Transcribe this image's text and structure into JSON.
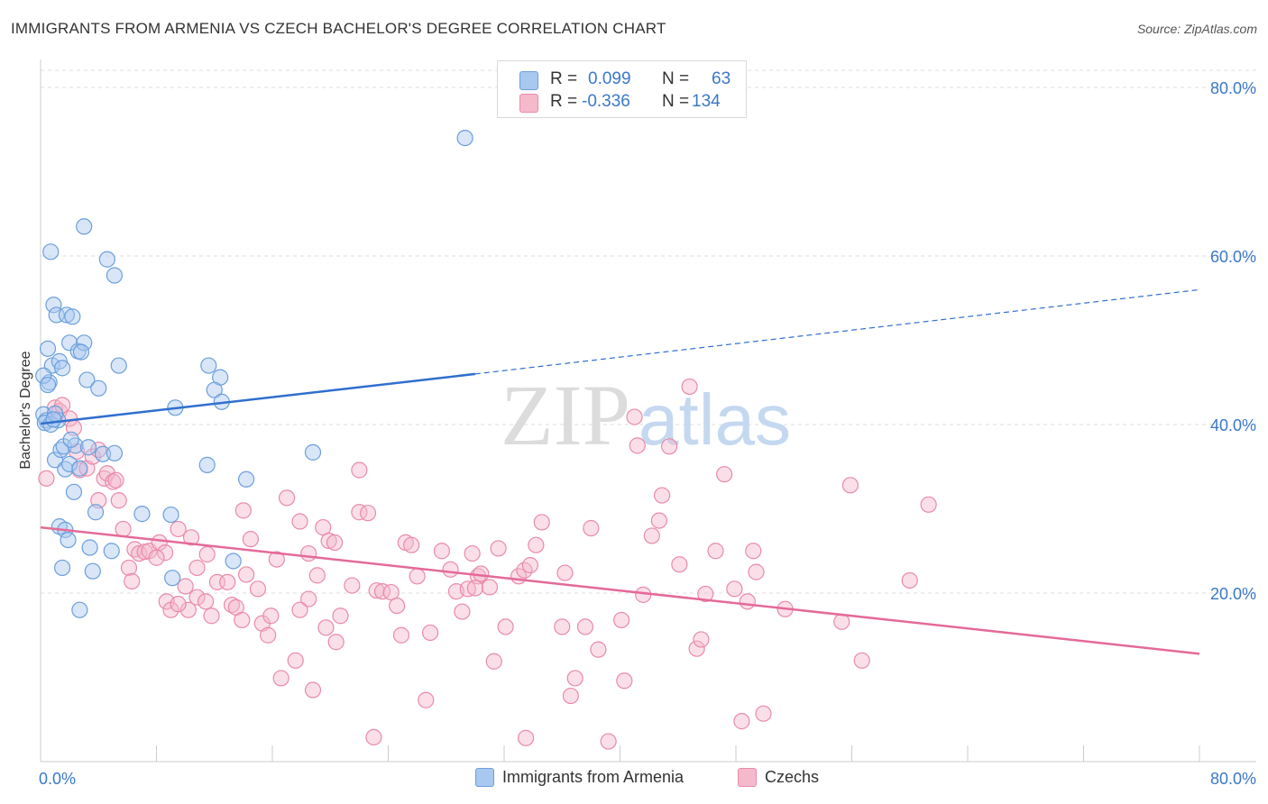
{
  "header": {
    "title": "IMMIGRANTS FROM ARMENIA VS CZECH BACHELOR'S DEGREE CORRELATION CHART",
    "source": "Source: ZipAtlas.com"
  },
  "watermark": {
    "zip": "ZIP",
    "atlas": "atlas"
  },
  "legend": {
    "armenia": {
      "r_label": "R =",
      "r_value": "0.099",
      "n_label": "N =",
      "n_value": "63"
    },
    "czech": {
      "r_label": "R =",
      "r_value": "-0.336",
      "n_label": "N =",
      "n_value": "134"
    }
  },
  "bottom_legend": {
    "armenia": "Immigrants from Armenia",
    "czech": "Czechs"
  },
  "colors": {
    "armenia_fill": "#a9c8ef",
    "armenia_stroke": "#6b9fdc",
    "armenia_line": "#2f6fcf",
    "czech_fill": "#f5b9cc",
    "czech_stroke": "#e98aa9",
    "czech_line": "#e46a98",
    "axis_text": "#3a78c9",
    "grid": "#dddddd"
  },
  "chart_data": {
    "type": "scatter",
    "title": "IMMIGRANTS FROM ARMENIA VS CZECH BACHELOR'S DEGREE CORRELATION CHART",
    "xlabel": "",
    "ylabel": "Bachelor's Degree",
    "xlim": [
      0,
      80
    ],
    "ylim": [
      0,
      80
    ],
    "x_tick_labels": [
      "0.0%",
      "80.0%"
    ],
    "y_ticks": [
      20,
      40,
      60,
      80
    ],
    "y_tick_labels": [
      "20.0%",
      "40.0%",
      "60.0%",
      "80.0%"
    ],
    "series": [
      {
        "name": "Immigrants from Armenia",
        "r": 0.099,
        "n": 63,
        "trend": {
          "x0": 0,
          "y0": 40.1,
          "x1": 30,
          "y1": 46.0,
          "dash_x1": 80,
          "dash_y1": 56.0
        },
        "points": [
          [
            0.2,
            41.2
          ],
          [
            0.4,
            40.5
          ],
          [
            0.6,
            45.0
          ],
          [
            0.8,
            47.0
          ],
          [
            0.5,
            49.0
          ],
          [
            0.7,
            60.5
          ],
          [
            0.9,
            54.2
          ],
          [
            1.1,
            53.0
          ],
          [
            1.3,
            47.5
          ],
          [
            1.5,
            46.7
          ],
          [
            1.8,
            53.0
          ],
          [
            2.2,
            52.8
          ],
          [
            2.0,
            49.7
          ],
          [
            2.6,
            48.7
          ],
          [
            3.0,
            49.7
          ],
          [
            2.8,
            48.6
          ],
          [
            1.2,
            40.5
          ],
          [
            1.0,
            35.8
          ],
          [
            1.4,
            37.0
          ],
          [
            1.6,
            37.4
          ],
          [
            1.7,
            34.7
          ],
          [
            2.0,
            35.3
          ],
          [
            2.4,
            37.5
          ],
          [
            2.1,
            38.2
          ],
          [
            2.3,
            32.0
          ],
          [
            2.7,
            34.8
          ],
          [
            3.3,
            37.3
          ],
          [
            4.3,
            36.5
          ],
          [
            5.1,
            36.6
          ],
          [
            3.8,
            29.6
          ],
          [
            1.3,
            27.9
          ],
          [
            1.7,
            27.5
          ],
          [
            1.9,
            26.3
          ],
          [
            3.4,
            25.4
          ],
          [
            4.9,
            25.0
          ],
          [
            1.5,
            23.0
          ],
          [
            3.6,
            22.6
          ],
          [
            2.7,
            18.0
          ],
          [
            3.0,
            63.5
          ],
          [
            4.6,
            59.6
          ],
          [
            5.1,
            57.7
          ],
          [
            5.4,
            47.0
          ],
          [
            3.2,
            45.3
          ],
          [
            4.0,
            44.3
          ],
          [
            0.2,
            45.8
          ],
          [
            0.5,
            44.7
          ],
          [
            9.3,
            42.0
          ],
          [
            11.6,
            47.0
          ],
          [
            12.4,
            45.6
          ],
          [
            12.0,
            44.1
          ],
          [
            12.5,
            42.7
          ],
          [
            11.5,
            35.2
          ],
          [
            14.2,
            33.5
          ],
          [
            9.0,
            29.3
          ],
          [
            7.0,
            29.4
          ],
          [
            9.1,
            21.8
          ],
          [
            13.3,
            23.8
          ],
          [
            18.8,
            36.7
          ],
          [
            29.3,
            74.0
          ],
          [
            0.3,
            40.2
          ],
          [
            0.7,
            40.0
          ],
          [
            1.0,
            41.3
          ],
          [
            0.9,
            40.6
          ]
        ]
      },
      {
        "name": "Czechs",
        "r": -0.336,
        "n": 134,
        "trend": {
          "x0": 0,
          "y0": 27.8,
          "x1": 80,
          "y1": 12.8
        },
        "points": [
          [
            0.4,
            33.6
          ],
          [
            1.0,
            42.0
          ],
          [
            1.3,
            41.6
          ],
          [
            1.5,
            42.3
          ],
          [
            2.0,
            40.7
          ],
          [
            2.3,
            39.6
          ],
          [
            2.5,
            36.8
          ],
          [
            2.7,
            34.6
          ],
          [
            3.2,
            34.8
          ],
          [
            3.6,
            36.2
          ],
          [
            4.0,
            37.0
          ],
          [
            4.4,
            33.6
          ],
          [
            4.6,
            34.2
          ],
          [
            5.0,
            33.2
          ],
          [
            5.2,
            33.4
          ],
          [
            5.4,
            31.0
          ],
          [
            4.0,
            31.0
          ],
          [
            5.7,
            27.6
          ],
          [
            6.5,
            25.2
          ],
          [
            6.8,
            24.7
          ],
          [
            7.2,
            24.9
          ],
          [
            7.5,
            25.0
          ],
          [
            8.2,
            26.0
          ],
          [
            8.6,
            24.8
          ],
          [
            9.5,
            27.6
          ],
          [
            10.4,
            26.6
          ],
          [
            10.8,
            23.0
          ],
          [
            11.5,
            24.6
          ],
          [
            6.1,
            23.0
          ],
          [
            6.3,
            21.4
          ],
          [
            8.7,
            19.0
          ],
          [
            9.0,
            18.0
          ],
          [
            10.0,
            20.8
          ],
          [
            10.2,
            18.0
          ],
          [
            10.8,
            19.5
          ],
          [
            11.4,
            19.0
          ],
          [
            11.8,
            17.3
          ],
          [
            12.2,
            21.3
          ],
          [
            12.9,
            21.3
          ],
          [
            13.2,
            18.6
          ],
          [
            13.5,
            18.3
          ],
          [
            13.9,
            16.8
          ],
          [
            14.2,
            22.2
          ],
          [
            14.5,
            26.4
          ],
          [
            15.0,
            20.5
          ],
          [
            15.3,
            16.4
          ],
          [
            15.7,
            15.0
          ],
          [
            15.9,
            17.3
          ],
          [
            16.3,
            24.0
          ],
          [
            14.0,
            29.8
          ],
          [
            17.0,
            31.3
          ],
          [
            17.9,
            28.5
          ],
          [
            18.5,
            24.7
          ],
          [
            19.1,
            22.1
          ],
          [
            19.5,
            27.8
          ],
          [
            19.9,
            26.2
          ],
          [
            20.3,
            26.0
          ],
          [
            20.7,
            17.3
          ],
          [
            18.5,
            19.3
          ],
          [
            17.9,
            18.0
          ],
          [
            17.6,
            12.0
          ],
          [
            16.6,
            9.9
          ],
          [
            18.8,
            8.5
          ],
          [
            19.7,
            15.9
          ],
          [
            20.4,
            14.2
          ],
          [
            21.5,
            20.9
          ],
          [
            22.0,
            34.6
          ],
          [
            22.0,
            29.6
          ],
          [
            22.6,
            29.5
          ],
          [
            23.2,
            20.3
          ],
          [
            23.6,
            20.2
          ],
          [
            24.2,
            20.1
          ],
          [
            24.6,
            18.5
          ],
          [
            24.9,
            15.0
          ],
          [
            25.2,
            26.0
          ],
          [
            25.6,
            25.7
          ],
          [
            26.0,
            22.0
          ],
          [
            26.6,
            7.3
          ],
          [
            26.9,
            15.3
          ],
          [
            27.7,
            25.0
          ],
          [
            28.3,
            22.8
          ],
          [
            28.7,
            20.2
          ],
          [
            29.1,
            17.8
          ],
          [
            29.5,
            20.5
          ],
          [
            29.8,
            24.7
          ],
          [
            30.2,
            22.0
          ],
          [
            30.4,
            22.3
          ],
          [
            31.0,
            20.7
          ],
          [
            31.3,
            11.9
          ],
          [
            31.6,
            25.3
          ],
          [
            32.1,
            16.0
          ],
          [
            33.0,
            22.0
          ],
          [
            33.4,
            22.7
          ],
          [
            33.8,
            23.3
          ],
          [
            34.2,
            25.7
          ],
          [
            34.6,
            28.4
          ],
          [
            36.0,
            16.0
          ],
          [
            36.2,
            22.4
          ],
          [
            36.9,
            9.9
          ],
          [
            36.6,
            7.8
          ],
          [
            37.6,
            16.0
          ],
          [
            38.0,
            27.7
          ],
          [
            38.5,
            13.3
          ],
          [
            39.2,
            2.4
          ],
          [
            40.1,
            16.8
          ],
          [
            40.3,
            9.6
          ],
          [
            41.6,
            19.8
          ],
          [
            41.2,
            37.5
          ],
          [
            41.0,
            40.9
          ],
          [
            42.2,
            26.8
          ],
          [
            42.7,
            28.6
          ],
          [
            43.4,
            37.4
          ],
          [
            44.1,
            23.4
          ],
          [
            44.8,
            44.5
          ],
          [
            45.3,
            13.4
          ],
          [
            45.6,
            14.5
          ],
          [
            45.9,
            19.9
          ],
          [
            46.6,
            25.0
          ],
          [
            47.2,
            34.1
          ],
          [
            47.9,
            20.5
          ],
          [
            48.4,
            4.8
          ],
          [
            48.8,
            19.0
          ],
          [
            49.2,
            25.0
          ],
          [
            49.4,
            22.5
          ],
          [
            49.9,
            5.7
          ],
          [
            51.4,
            18.1
          ],
          [
            55.3,
            16.6
          ],
          [
            55.9,
            32.8
          ],
          [
            56.7,
            12.0
          ],
          [
            60.0,
            21.5
          ],
          [
            61.3,
            30.5
          ],
          [
            33.5,
            2.8
          ],
          [
            23.0,
            2.9
          ],
          [
            42.9,
            31.6
          ],
          [
            30.0,
            20.6
          ],
          [
            8.0,
            24.2
          ],
          [
            9.5,
            18.7
          ]
        ]
      }
    ]
  }
}
